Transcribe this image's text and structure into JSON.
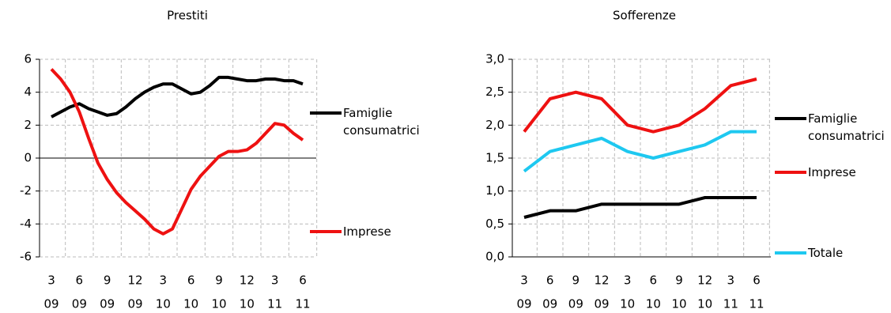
{
  "chart_data": [
    {
      "type": "line",
      "title": "Prestiti",
      "categories": [
        [
          "3",
          "09"
        ],
        null,
        null,
        [
          "6",
          "09"
        ],
        null,
        null,
        [
          "9",
          "09"
        ],
        null,
        null,
        [
          "12",
          "09"
        ],
        null,
        null,
        [
          "3",
          "10"
        ],
        null,
        null,
        [
          "6",
          "10"
        ],
        null,
        null,
        [
          "9",
          "10"
        ],
        null,
        null,
        [
          "12",
          "10"
        ],
        null,
        null,
        [
          "3",
          "11"
        ],
        null,
        null,
        [
          "6",
          "11"
        ]
      ],
      "series": [
        {
          "name": "Famiglie consumatrici",
          "color": "#000000",
          "values": [
            2.5,
            2.8,
            3.1,
            3.3,
            3.0,
            2.8,
            2.6,
            2.7,
            3.1,
            3.6,
            4.0,
            4.3,
            4.5,
            4.5,
            4.2,
            3.9,
            4.0,
            4.4,
            4.9,
            4.9,
            4.8,
            4.7,
            4.7,
            4.8,
            4.8,
            4.7,
            4.7,
            4.5
          ]
        },
        {
          "name": "Imprese",
          "color": "#ee1111",
          "values": [
            5.4,
            4.8,
            4.0,
            2.8,
            1.2,
            -0.3,
            -1.3,
            -2.1,
            -2.7,
            -3.2,
            -3.7,
            -4.3,
            -4.6,
            -4.3,
            -3.1,
            -1.9,
            -1.1,
            -0.5,
            0.1,
            0.4,
            0.4,
            0.5,
            0.9,
            1.5,
            2.1,
            2.0,
            1.5,
            1.1
          ]
        }
      ],
      "ylim": [
        -6,
        6
      ],
      "yticks": [
        -6,
        -4,
        -2,
        0,
        2,
        4,
        6
      ],
      "grid": true
    },
    {
      "type": "line",
      "title": "Sofferenze",
      "categories": [
        [
          "3",
          "09"
        ],
        [
          "6",
          "09"
        ],
        [
          "9",
          "09"
        ],
        [
          "12",
          "09"
        ],
        [
          "3",
          "10"
        ],
        [
          "6",
          "10"
        ],
        [
          "9",
          "10"
        ],
        [
          "12",
          "10"
        ],
        [
          "3",
          "11"
        ],
        [
          "6",
          "11"
        ]
      ],
      "series": [
        {
          "name": "Famiglie consumatrici",
          "color": "#000000",
          "values": [
            0.6,
            0.7,
            0.7,
            0.8,
            0.8,
            0.8,
            0.8,
            0.9,
            0.9,
            0.9
          ]
        },
        {
          "name": "Imprese",
          "color": "#ee1111",
          "values": [
            1.9,
            2.4,
            2.5,
            2.4,
            2.0,
            1.9,
            2.0,
            2.25,
            2.6,
            2.7
          ]
        },
        {
          "name": "Totale",
          "color": "#1ec8f0",
          "values": [
            1.3,
            1.6,
            1.7,
            1.8,
            1.6,
            1.5,
            1.6,
            1.7,
            1.9,
            1.9
          ]
        }
      ],
      "ylim": [
        0,
        3
      ],
      "yticks": [
        {
          "value": 0,
          "label": "0,0"
        },
        {
          "value": 0.5,
          "label": "0,5"
        },
        {
          "value": 1,
          "label": "1,0"
        },
        {
          "value": 1.5,
          "label": "1,5"
        },
        {
          "value": 2,
          "label": "2,0"
        },
        {
          "value": 2.5,
          "label": "2,5"
        },
        {
          "value": 3,
          "label": "3,0"
        }
      ],
      "grid": true
    }
  ]
}
